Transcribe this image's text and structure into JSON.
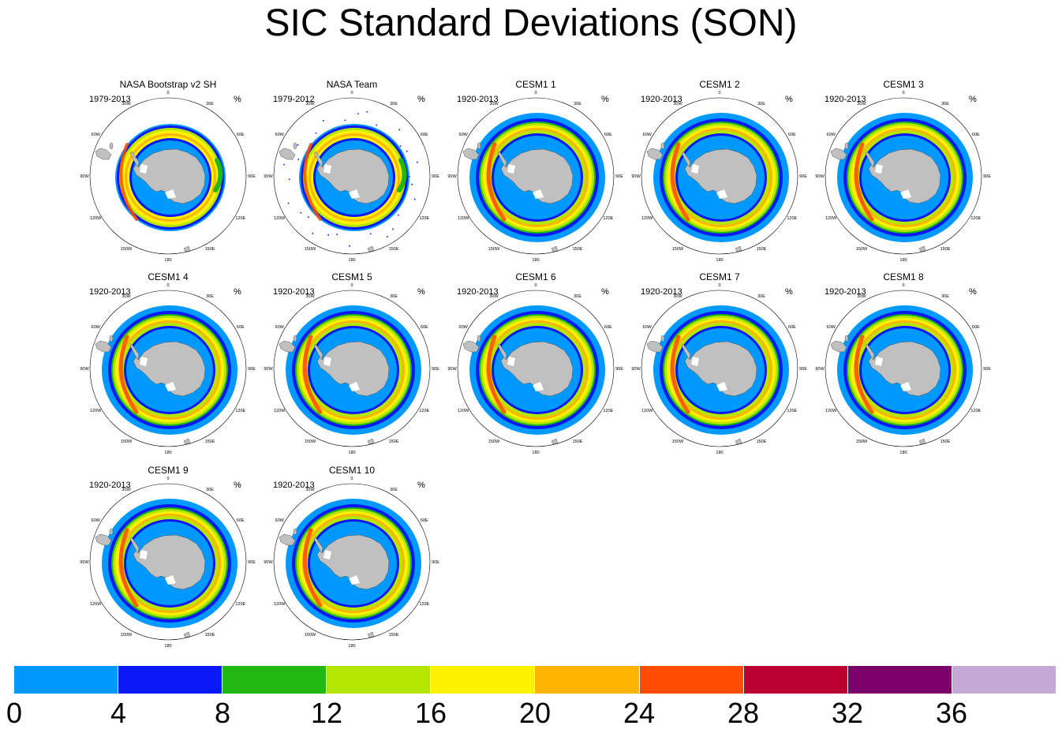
{
  "title": "SIC Standard Deviations (SON)",
  "unit": "%",
  "longitude_labels": [
    "0",
    "30E",
    "60E",
    "90E",
    "120E",
    "150E",
    "180",
    "150W",
    "120W",
    "90W",
    "60W",
    "30W"
  ],
  "panels": [
    {
      "title": "NASA Bootstrap v2 SH",
      "period": "1979-2013",
      "variant": "obs1"
    },
    {
      "title": "NASA Team",
      "period": "1979-2012",
      "variant": "obs2"
    },
    {
      "title": "CESM1 1",
      "period": "1920-2013",
      "variant": "model"
    },
    {
      "title": "CESM1 2",
      "period": "1920-2013",
      "variant": "model"
    },
    {
      "title": "CESM1 3",
      "period": "1920-2013",
      "variant": "model"
    },
    {
      "title": "CESM1 4",
      "period": "1920-2013",
      "variant": "model"
    },
    {
      "title": "CESM1 5",
      "period": "1920-2013",
      "variant": "model"
    },
    {
      "title": "CESM1 6",
      "period": "1920-2013",
      "variant": "model"
    },
    {
      "title": "CESM1 7",
      "period": "1920-2013",
      "variant": "model"
    },
    {
      "title": "CESM1 8",
      "period": "1920-2013",
      "variant": "model"
    },
    {
      "title": "CESM1 9",
      "period": "1920-2013",
      "variant": "model"
    },
    {
      "title": "CESM1 10",
      "period": "1920-2013",
      "variant": "model"
    }
  ],
  "colorbar": {
    "colors": [
      "#0099ff",
      "#0a18f5",
      "#22b812",
      "#b5e600",
      "#fff200",
      "#ffb400",
      "#ff4c00",
      "#bd0032",
      "#7a006a",
      "#c6a8d6"
    ],
    "labels": [
      "0",
      "4",
      "8",
      "12",
      "16",
      "20",
      "24",
      "28",
      "32",
      "36"
    ]
  },
  "land_color": "#c0c0c0"
}
